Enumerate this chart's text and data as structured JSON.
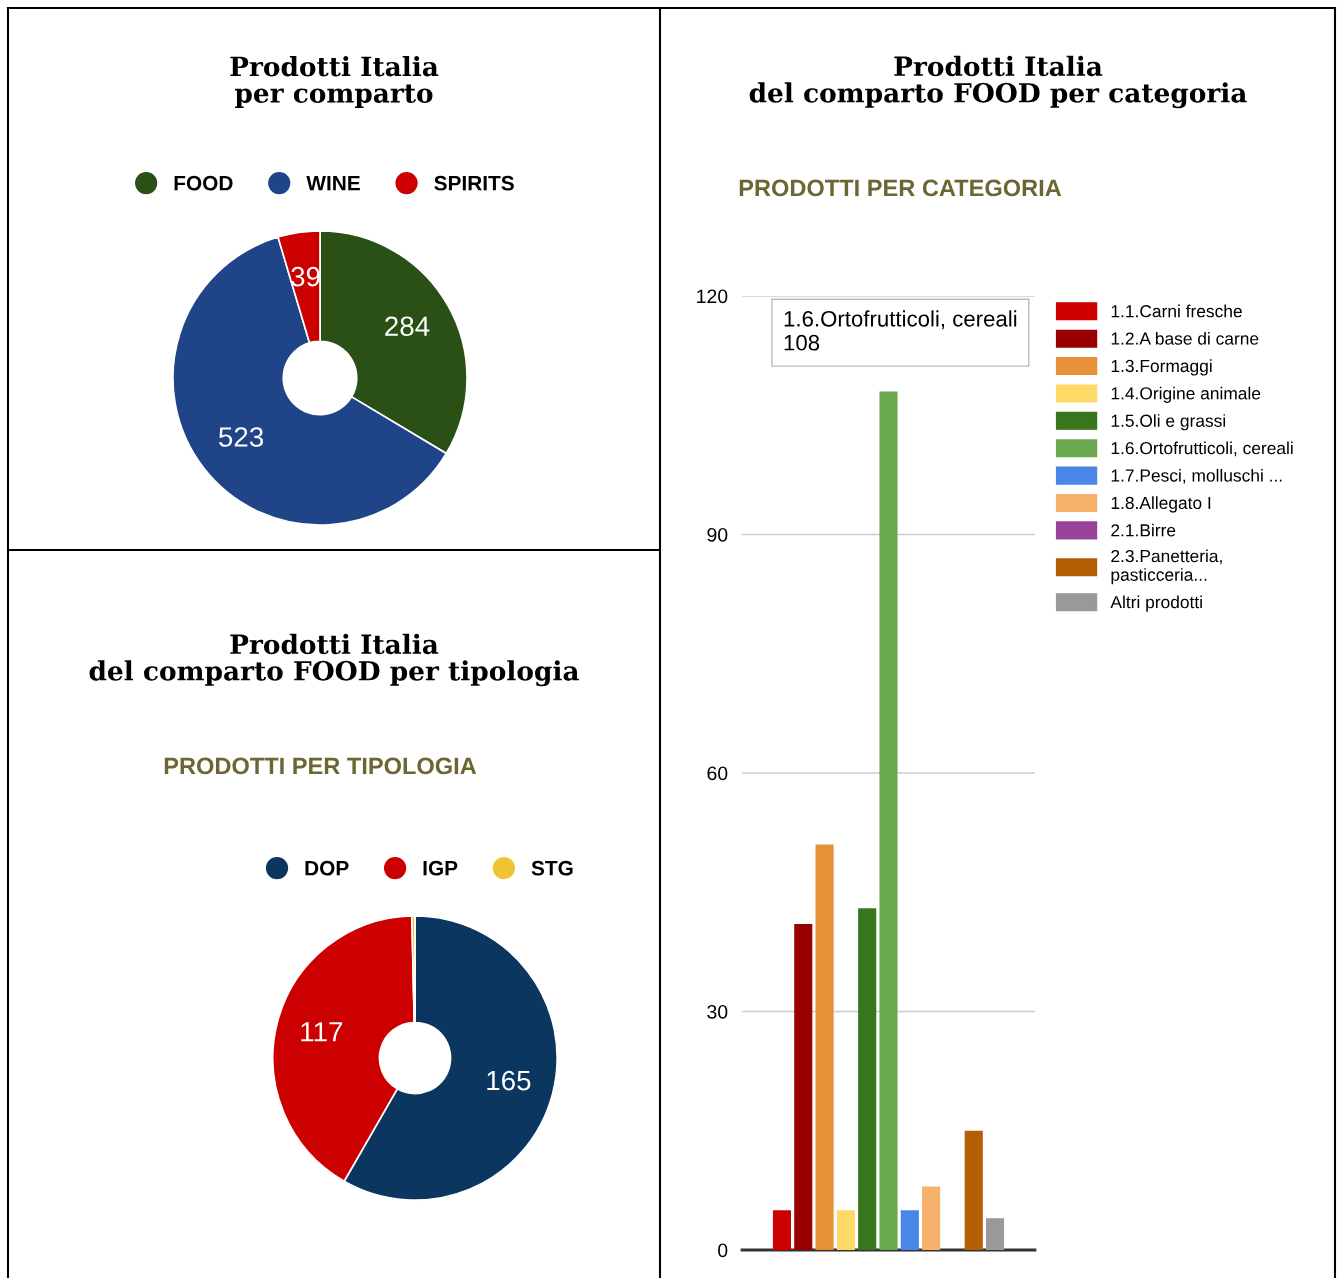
{
  "chart_data": [
    {
      "type": "donut",
      "title": "Prodotti Italia\nper comparto",
      "categories": [
        "FOOD",
        "WINE",
        "SPIRITS"
      ],
      "values": [
        284,
        523,
        39
      ],
      "colors": [
        "#2a5016",
        "#1f4487",
        "#cc0000"
      ],
      "value_labels": [
        "284",
        "523",
        "39"
      ],
      "legend": "top"
    },
    {
      "type": "donut",
      "title": "Prodotti Italia\ndel comparto FOOD per tipologia",
      "subtitle": "PRODOTTI PER TIPOLOGIA",
      "categories": [
        "DOP",
        "IGP",
        "STG"
      ],
      "values": [
        165,
        117,
        1
      ],
      "colors": [
        "#0a3660",
        "#cc0000",
        "#f1c232"
      ],
      "value_labels": [
        "165",
        "117",
        null
      ],
      "legend": "top"
    },
    {
      "type": "bar",
      "title": "Prodotti Italia\ndel comparto FOOD per categoria",
      "subtitle": "PRODOTTI PER CATEGORIA",
      "categories": [
        null
      ],
      "ylim": [
        0,
        120
      ],
      "yticks": [
        0,
        30,
        60,
        90,
        120
      ],
      "grid": "y",
      "legend": "right",
      "tick_labels": "y",
      "series": [
        {
          "name": "1.1.Carni fresche",
          "color": "#cc0000",
          "values": [
            5
          ]
        },
        {
          "name": "1.2.A base di carne",
          "color": "#990000",
          "values": [
            41
          ]
        },
        {
          "name": "1.3.Formaggi",
          "color": "#e69138",
          "values": [
            51
          ]
        },
        {
          "name": "1.4.Origine animale",
          "color": "#ffd966",
          "values": [
            5
          ]
        },
        {
          "name": "1.5.Oli e grassi",
          "color": "#38761d",
          "values": [
            43
          ]
        },
        {
          "name": "1.6.Ortofrutticoli, cereali",
          "color": "#6aa84f",
          "values": [
            108
          ]
        },
        {
          "name": "1.7.Pesci, molluschi ...",
          "color": "#4a86e8",
          "values": [
            5
          ]
        },
        {
          "name": "1.8.Allegato I",
          "color": "#f6b26b",
          "values": [
            8
          ]
        },
        {
          "name": "2.1.Birre",
          "color": "#994499",
          "values": [
            0
          ]
        },
        {
          "name": "2.3.Panetteria,\npasticceria...",
          "color": "#b45f06",
          "values": [
            15
          ]
        },
        {
          "name": "Altri prodotti",
          "color": "#999999",
          "values": [
            4
          ]
        }
      ],
      "annotations": [
        "1.6.Ortofrutticoli, cereali\n108"
      ]
    }
  ]
}
